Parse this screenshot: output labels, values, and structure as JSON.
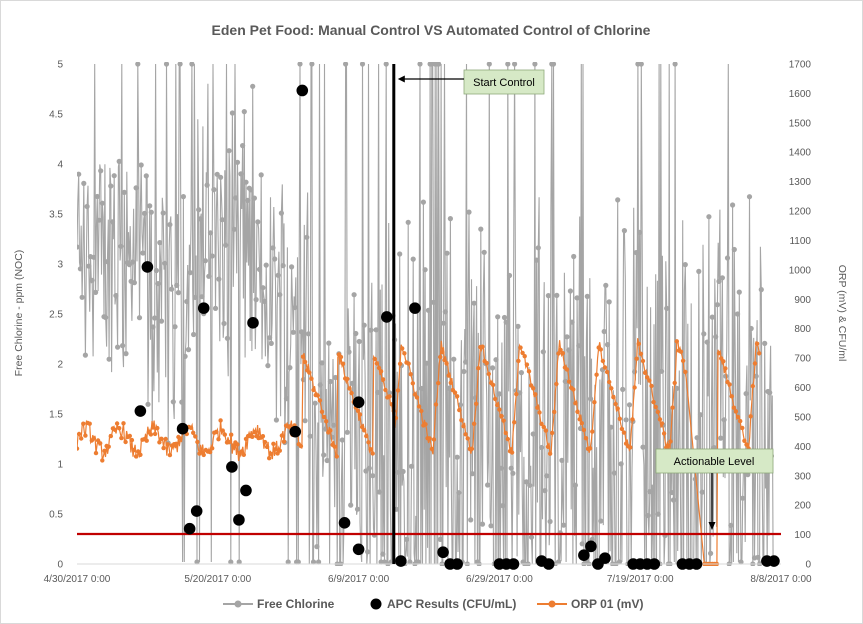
{
  "chart_data": {
    "type": "line",
    "title": "Eden Pet Food: Manual Control VS Automated Control of Chlorine",
    "ylabel": "Free Chlorine - ppm (NOC)",
    "y2label": "ORP (mV) & CFU/ml",
    "x_ticks": [
      "4/30/2017 0:00",
      "5/20/2017 0:00",
      "6/9/2017 0:00",
      "6/29/2017 0:00",
      "7/19/2017 0:00",
      "8/8/2017 0:00"
    ],
    "xlim_days": [
      0,
      100
    ],
    "ylim": [
      0,
      5
    ],
    "y_ticks": [
      "0",
      "0.5",
      "1",
      "1.5",
      "2",
      "2.5",
      "3",
      "3.5",
      "4",
      "4.5",
      "5"
    ],
    "y2lim": [
      0,
      1700
    ],
    "y2_ticks": [
      "0",
      "100",
      "200",
      "300",
      "400",
      "500",
      "600",
      "700",
      "800",
      "900",
      "1000",
      "1100",
      "1200",
      "1300",
      "1400",
      "1500",
      "1600",
      "1700"
    ],
    "grid": "none",
    "legend": "bottom",
    "series": [
      {
        "name": "Free Chlorine",
        "axis": "left",
        "color": "#a5a5a5"
      },
      {
        "name": "APC Results (CFU/mL)",
        "axis": "right",
        "color": "#000000",
        "points": [
          [
            9,
            520
          ],
          [
            10,
            1010
          ],
          [
            15,
            460
          ],
          [
            16,
            120
          ],
          [
            17,
            180
          ],
          [
            18,
            870
          ],
          [
            22,
            330
          ],
          [
            23,
            150
          ],
          [
            24,
            250
          ],
          [
            25,
            820
          ],
          [
            31,
            450
          ],
          [
            32,
            1610
          ],
          [
            38,
            140
          ],
          [
            40,
            550
          ],
          [
            40,
            50
          ],
          [
            44,
            840
          ],
          [
            46,
            10
          ],
          [
            48,
            870
          ],
          [
            52,
            40
          ],
          [
            53,
            0
          ],
          [
            54,
            0
          ],
          [
            60,
            0
          ],
          [
            61,
            0
          ],
          [
            62,
            0
          ],
          [
            66,
            10
          ],
          [
            67,
            0
          ],
          [
            72,
            30
          ],
          [
            73,
            60
          ],
          [
            74,
            0
          ],
          [
            75,
            20
          ],
          [
            79,
            0
          ],
          [
            80,
            0
          ],
          [
            81,
            0
          ],
          [
            82,
            0
          ],
          [
            86,
            0
          ],
          [
            87,
            0
          ],
          [
            88,
            0
          ],
          [
            98,
            10
          ],
          [
            99,
            10
          ]
        ]
      },
      {
        "name": "ORP 01 (mV)",
        "axis": "right",
        "color": "#ed7d31"
      }
    ],
    "annotations": [
      {
        "text": "Start Control",
        "x_day": 45,
        "y2": 1600
      },
      {
        "text": "Actionable Level",
        "y": 0.3,
        "x_day": 95
      }
    ],
    "reference_line": {
      "y": 0.3,
      "color": "#c00000"
    },
    "start_line": {
      "x_day": 45,
      "color": "#000000"
    }
  }
}
